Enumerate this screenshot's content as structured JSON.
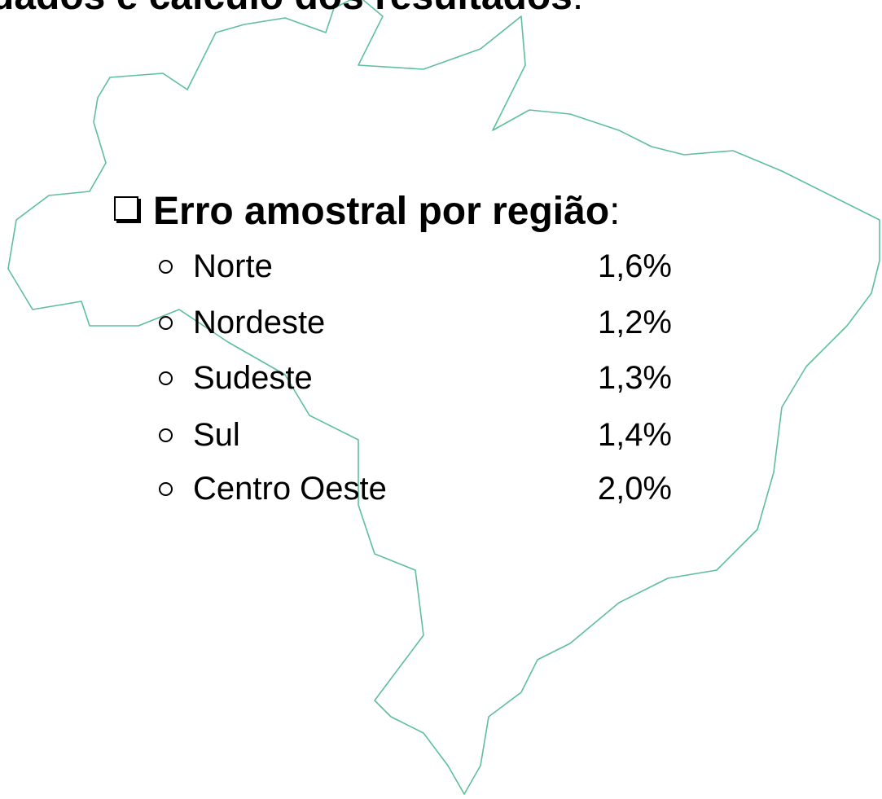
{
  "header": {
    "title": "dados e cálculo dos resultados",
    "title_suffix": ":"
  },
  "section": {
    "heading": "Erro amostral por região",
    "heading_suffix": ":",
    "rows": [
      [
        "Norte",
        "1,6%"
      ],
      [
        "Nordeste",
        "1,2%"
      ],
      [
        "Sudeste",
        "1,3%"
      ],
      [
        "Sul",
        "1,4%"
      ],
      [
        "Centro Oeste",
        "2,0%"
      ]
    ]
  }
}
